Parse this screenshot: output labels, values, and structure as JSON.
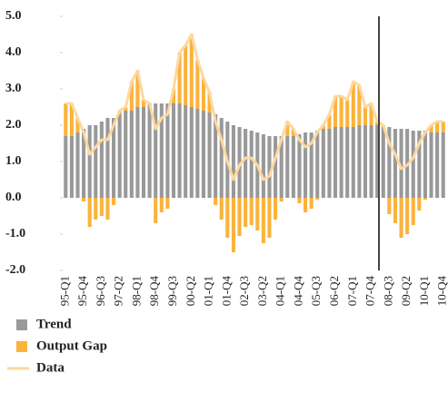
{
  "chart_data": {
    "type": "bar",
    "categories": [
      "95-Q1",
      null,
      null,
      "95-Q4",
      null,
      null,
      "96-Q3",
      null,
      null,
      "97-Q2",
      null,
      null,
      "98-Q1",
      null,
      null,
      "98-Q4",
      null,
      null,
      "99-Q3",
      null,
      null,
      "00-Q2",
      null,
      null,
      "01-Q1",
      null,
      null,
      "01-Q4",
      null,
      null,
      "02-Q3",
      null,
      null,
      "03-Q2",
      null,
      null,
      "04-Q1",
      null,
      null,
      "04-Q4",
      null,
      null,
      "05-Q3",
      null,
      null,
      "06-Q2",
      null,
      null,
      "07-Q1",
      null,
      null,
      "07-Q4",
      null,
      null,
      "08-Q3",
      null,
      null,
      "09-Q2",
      null,
      null,
      "10-Q1",
      null,
      null,
      "10-Q4"
    ],
    "series": [
      {
        "name": "Trend",
        "color": "#999999",
        "values": [
          1.7,
          1.7,
          1.8,
          1.9,
          2.0,
          2.0,
          2.1,
          2.2,
          2.2,
          2.3,
          2.4,
          2.4,
          2.5,
          2.5,
          2.6,
          2.6,
          2.6,
          2.6,
          2.6,
          2.6,
          2.55,
          2.5,
          2.45,
          2.4,
          2.35,
          2.3,
          2.2,
          2.1,
          2.0,
          1.95,
          1.9,
          1.85,
          1.8,
          1.75,
          1.7,
          1.7,
          1.7,
          1.7,
          1.7,
          1.75,
          1.8,
          1.8,
          1.85,
          1.9,
          1.9,
          1.95,
          1.95,
          1.95,
          1.95,
          2.0,
          2.0,
          2.0,
          2.0,
          1.95,
          1.95,
          1.9,
          1.9,
          1.9,
          1.85,
          1.85,
          1.85,
          1.8,
          1.8,
          1.8
        ]
      },
      {
        "name": "Output Gap",
        "color": "#fbb33b",
        "values": [
          0.9,
          0.9,
          0.4,
          -0.1,
          -0.8,
          -0.6,
          -0.5,
          -0.6,
          -0.2,
          0.1,
          0.1,
          0.8,
          1.0,
          0.2,
          0.0,
          -0.7,
          -0.4,
          -0.3,
          0.4,
          1.4,
          1.65,
          2.0,
          1.35,
          0.9,
          0.55,
          -0.2,
          -0.6,
          -1.1,
          -1.5,
          -1.05,
          -0.8,
          -0.75,
          -0.9,
          -1.25,
          -1.1,
          -0.6,
          -0.1,
          0.4,
          0.2,
          -0.15,
          -0.4,
          -0.3,
          -0.05,
          0.1,
          0.4,
          0.85,
          0.85,
          0.75,
          1.25,
          1.1,
          0.5,
          0.6,
          0.1,
          0.05,
          -0.45,
          -0.7,
          -1.1,
          -1.0,
          -0.75,
          -0.35,
          -0.05,
          0.2,
          0.3,
          0.3
        ]
      },
      {
        "name": "Data",
        "color": "#fdd8a0",
        "values": [
          2.6,
          2.6,
          2.2,
          1.8,
          1.2,
          1.4,
          1.6,
          1.6,
          2.0,
          2.4,
          2.5,
          3.2,
          3.5,
          2.7,
          2.6,
          1.9,
          2.2,
          2.3,
          3.0,
          4.0,
          4.2,
          4.5,
          3.8,
          3.3,
          2.9,
          2.1,
          1.6,
          1.0,
          0.5,
          0.9,
          1.1,
          1.1,
          0.9,
          0.5,
          0.6,
          1.1,
          1.6,
          2.1,
          1.9,
          1.6,
          1.4,
          1.5,
          1.8,
          2.0,
          2.3,
          2.8,
          2.8,
          2.7,
          3.2,
          3.1,
          2.5,
          2.6,
          2.1,
          2.0,
          1.5,
          1.2,
          0.8,
          0.9,
          1.1,
          1.5,
          1.8,
          2.0,
          2.1,
          2.1
        ]
      }
    ],
    "ylim": [
      -2,
      5
    ],
    "yticks": [
      {
        "value": 5,
        "label": "5.0"
      },
      {
        "value": 4,
        "label": "4.0"
      },
      {
        "value": 3,
        "label": "3.0"
      },
      {
        "value": 2,
        "label": "2.0"
      },
      {
        "value": 1,
        "label": "1.0"
      },
      {
        "value": 0,
        "label": "0.0"
      },
      {
        "value": -1,
        "label": "-1.0"
      },
      {
        "value": -2,
        "label": "-2.0"
      }
    ],
    "grid": false
  }
}
